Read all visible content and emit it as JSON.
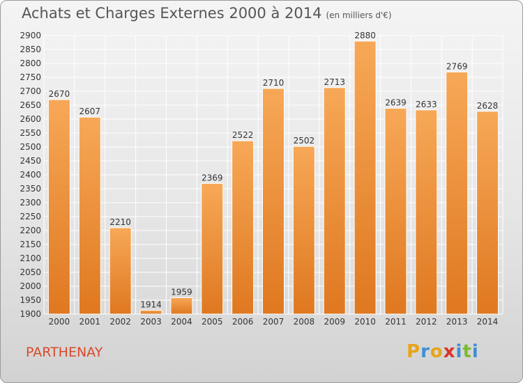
{
  "title": "Achats et Charges Externes 2000 à 2014",
  "unit": "(en milliers d'€)",
  "place": "PARTHENAY",
  "brand": "Proxiti",
  "colors": {
    "bar_light": "#f7a857",
    "bar_dark": "#df7820",
    "grid": "#ffffff",
    "place": "#d94a2a"
  },
  "chart_data": {
    "type": "bar",
    "title": "Achats et Charges Externes 2000 à 2014",
    "subtitle": "(en milliers d'€)",
    "categories": [
      "2000",
      "2001",
      "2002",
      "2003",
      "2004",
      "2005",
      "2006",
      "2007",
      "2008",
      "2009",
      "2010",
      "2011",
      "2012",
      "2013",
      "2014"
    ],
    "values": [
      2670,
      2607,
      2210,
      1914,
      1959,
      2369,
      2522,
      2710,
      2502,
      2713,
      2880,
      2639,
      2633,
      2769,
      2628
    ],
    "ylim": [
      1900,
      2900
    ],
    "ytick_step": 50,
    "grid": true,
    "xlabel": "",
    "ylabel": ""
  }
}
